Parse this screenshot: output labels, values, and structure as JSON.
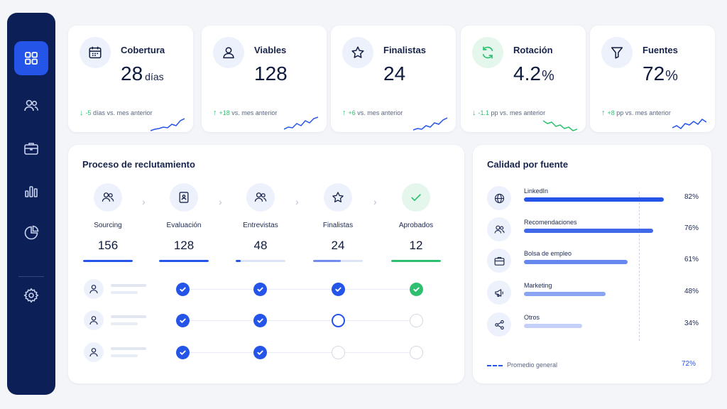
{
  "sidebar": {
    "items": [
      {
        "name": "dashboard-icon",
        "active": true
      },
      {
        "name": "users-icon",
        "active": false
      },
      {
        "name": "briefcase-icon",
        "active": false
      },
      {
        "name": "bar-chart-icon",
        "active": false
      },
      {
        "name": "pie-chart-icon",
        "active": false
      },
      {
        "name": "settings-icon",
        "active": false
      }
    ]
  },
  "kpis": [
    {
      "label": "Cobertura",
      "value": "28",
      "unit": "días",
      "arrow": "↓",
      "delta": "-5",
      "trend_text": "días vs. mes anterior",
      "icon": "calendar-icon"
    },
    {
      "label": "Viables",
      "value": "128",
      "unit": "",
      "arrow": "↑",
      "delta": "+18",
      "trend_text": "vs. mes anterior",
      "icon": "user-icon"
    },
    {
      "label": "Finalistas",
      "value": "24",
      "unit": "",
      "arrow": "↑",
      "delta": "+6",
      "trend_text": "vs. mes anterior",
      "icon": "star-icon"
    },
    {
      "label": "Rotación",
      "value": "4.2",
      "unit": "%",
      "arrow": "↓",
      "delta": "-1.1",
      "trend_text": "pp vs. mes anterior",
      "icon": "refresh-icon"
    },
    {
      "label": "Fuentes",
      "value": "72",
      "unit": "%",
      "arrow": "↑",
      "delta": "+8",
      "trend_text": "pp vs. mes anterior",
      "icon": "filter-icon"
    }
  ],
  "process": {
    "title": "Proceso de reclutamiento",
    "stages": [
      {
        "name": "Sourcing",
        "count": "156",
        "fill": 1.0,
        "icon": "users-icon"
      },
      {
        "name": "Evaluación",
        "count": "128",
        "fill": 1.0,
        "icon": "document-icon"
      },
      {
        "name": "Entrevistas",
        "count": "48",
        "fill": 0.1,
        "icon": "users-icon"
      },
      {
        "name": "Finalistas",
        "count": "24",
        "fill": 0.55,
        "icon": "star-icon"
      },
      {
        "name": "Aprobados",
        "count": "12",
        "fill": 1.0,
        "icon": "check-icon"
      }
    ],
    "candidates": [
      {
        "steps": [
          "done",
          "done",
          "done",
          "ok"
        ]
      },
      {
        "steps": [
          "done",
          "done",
          "current",
          "todo"
        ]
      },
      {
        "steps": [
          "done",
          "done",
          "todo",
          "todo"
        ]
      }
    ]
  },
  "quality": {
    "title": "Calidad por fuente",
    "sources": [
      {
        "name": "LinkedIn",
        "pct": "82%",
        "value": 82,
        "color": "#2454e8",
        "icon": "globe-icon"
      },
      {
        "name": "Recomendaciones",
        "pct": "76%",
        "value": 76,
        "color": "#4069ea",
        "icon": "users-icon"
      },
      {
        "name": "Bolsa de empleo",
        "pct": "61%",
        "value": 61,
        "color": "#6687ee",
        "icon": "briefcase-icon"
      },
      {
        "name": "Marketing",
        "pct": "48%",
        "value": 48,
        "color": "#8ba4f2",
        "icon": "megaphone-icon"
      },
      {
        "name": "Otros",
        "pct": "34%",
        "value": 34,
        "color": "#c4d0f7",
        "icon": "share-icon"
      }
    ],
    "average_label": "Promedio general",
    "average_value": "72%",
    "average": 72
  },
  "colors": {
    "sidebar": "#0c1f56",
    "accent": "#2454e8",
    "success": "#2fbf71"
  }
}
